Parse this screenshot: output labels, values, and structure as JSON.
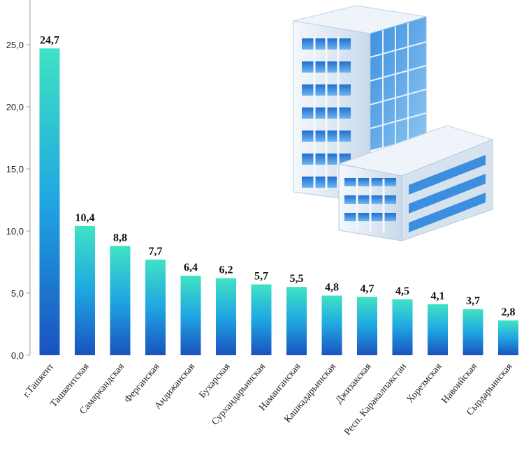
{
  "chart_data": {
    "type": "bar",
    "categories": [
      "г.Ташкент",
      "Ташкентская",
      "Самаркандская",
      "Ферганская",
      "Андижанская",
      "Бухарская",
      "Сурхандарьинская",
      "Наманганская",
      "Кашкадарьинская",
      "Джизакская",
      "Респ. Каракалпакстан",
      "Хорезмская",
      "Навоийская",
      "Сырдарьинская"
    ],
    "values": [
      24.7,
      10.4,
      8.8,
      7.7,
      6.4,
      6.2,
      5.7,
      5.5,
      4.8,
      4.7,
      4.5,
      4.1,
      3.7,
      2.8
    ],
    "value_labels": [
      "24,7",
      "10,4",
      "8,8",
      "7,7",
      "6,4",
      "6,2",
      "5,7",
      "5,5",
      "4,8",
      "4,7",
      "4,5",
      "4,1",
      "3,7",
      "2,8"
    ],
    "yticks": [
      0,
      5,
      10,
      15,
      20,
      25
    ],
    "ytick_labels": [
      "0,0",
      "5,0",
      "10,0",
      "15,0",
      "20,0",
      "25,0"
    ],
    "ylim": [
      0,
      28.5
    ],
    "title": "",
    "xlabel": "",
    "ylabel": "",
    "grid": false,
    "bar_gradient": [
      "#3fe3c4",
      "#1c9fe0",
      "#1a55c2"
    ]
  },
  "decoration": {
    "icon": "office-building-icon"
  }
}
